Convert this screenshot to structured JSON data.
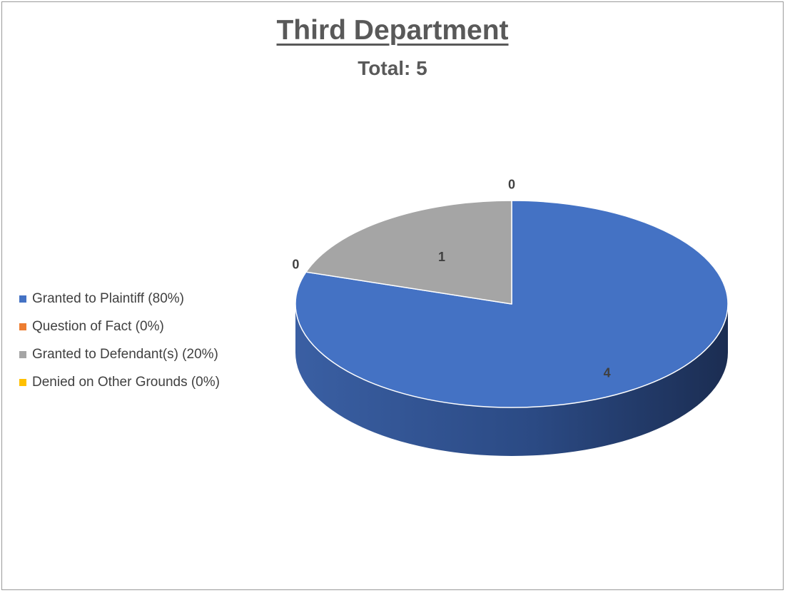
{
  "chart_data": {
    "type": "pie",
    "title": "Third Department",
    "subtitle": "Total: 5",
    "categories": [
      "Granted to Plaintiff",
      "Question of Fact",
      "Granted to Defendant(s)",
      "Denied on Other Grounds"
    ],
    "values": [
      4,
      0,
      1,
      0
    ],
    "data_labels": [
      "4",
      "0",
      "1",
      "0"
    ],
    "legend_labels": [
      "Granted to Plaintiff (80%)",
      "Question of Fact (0%)",
      "Granted to Defendant(s) (20%)",
      "Denied on Other Grounds (0%)"
    ],
    "colors": [
      "#4472C4",
      "#ED7D31",
      "#A5A5A5",
      "#FFC000"
    ],
    "legend_position": "left",
    "three_d": true
  }
}
